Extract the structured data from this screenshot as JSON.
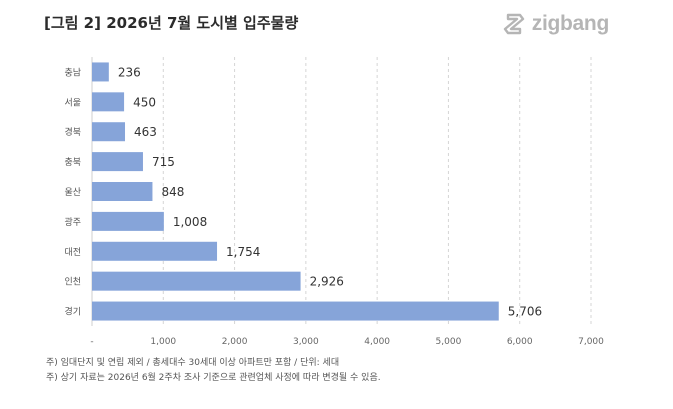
{
  "header": {
    "title": "[그림 2] 2026년 7월 도시별 입주물량",
    "brand": "zigbang",
    "brand_icon": "zigbang-logo-icon"
  },
  "chart_data": {
    "type": "bar",
    "orientation": "horizontal",
    "categories": [
      "충남",
      "서울",
      "경북",
      "충북",
      "울산",
      "광주",
      "대전",
      "인천",
      "경기"
    ],
    "values": [
      236,
      450,
      463,
      715,
      848,
      1008,
      1754,
      2926,
      5706
    ],
    "value_labels": [
      "236",
      "450",
      "463",
      "715",
      "848",
      "1,008",
      "1,754",
      "2,926",
      "5,706"
    ],
    "xlim": [
      0,
      7000
    ],
    "xticks": [
      0,
      1000,
      2000,
      3000,
      4000,
      5000,
      6000,
      7000
    ],
    "xtick_labels": [
      "-",
      "1,000",
      "2,000",
      "3,000",
      "4,000",
      "5,000",
      "6,000",
      "7,000"
    ],
    "grid": "vertical-dashed",
    "bar_color": "#86a4d9"
  },
  "notes": {
    "line1": "주) 임대단지 및 연립 제외 / 총세대수 30세대 이상 아파트만 포함 / 단위: 세대",
    "line2": "주) 상기 자료는 2026년 6월 2주차 조사 기준으로 관련업체 사정에 따라 변경될 수 있음."
  }
}
